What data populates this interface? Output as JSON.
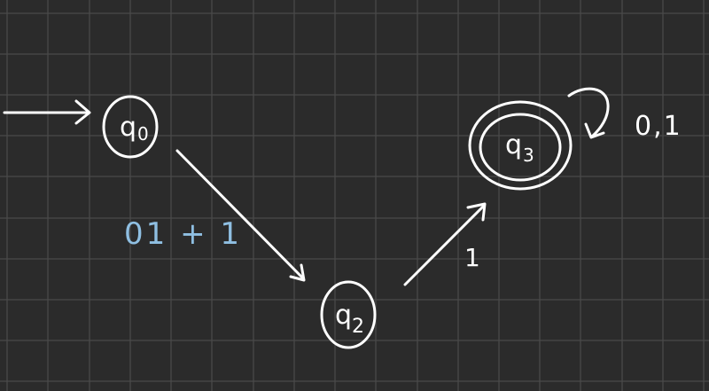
{
  "colors": {
    "background": "#2b2b2b",
    "grid": "#4a4a4a",
    "ink": "#ffffff",
    "accent": "#8fbfe2"
  },
  "states": {
    "q0": {
      "name": "q",
      "sub": "0"
    },
    "q2": {
      "name": "q",
      "sub": "2"
    },
    "q3": {
      "name": "q",
      "sub": "3"
    }
  },
  "transitions": {
    "q0_to_q2": "01 + 1",
    "q2_to_q3": "1",
    "q3_loop": "0,1"
  }
}
